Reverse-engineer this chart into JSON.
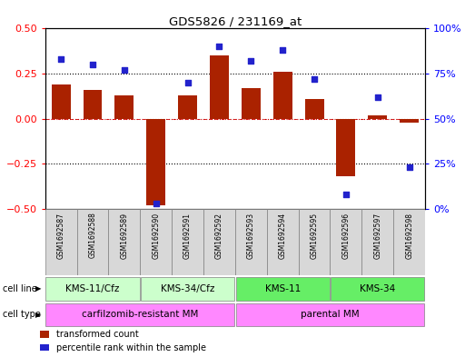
{
  "title": "GDS5826 / 231169_at",
  "samples": [
    "GSM1692587",
    "GSM1692588",
    "GSM1692589",
    "GSM1692590",
    "GSM1692591",
    "GSM1692592",
    "GSM1692593",
    "GSM1692594",
    "GSM1692595",
    "GSM1692596",
    "GSM1692597",
    "GSM1692598"
  ],
  "transformed_count": [
    0.19,
    0.16,
    0.13,
    -0.48,
    0.13,
    0.35,
    0.17,
    0.26,
    0.11,
    -0.32,
    0.02,
    -0.02
  ],
  "percentile_rank": [
    83,
    80,
    77,
    3,
    70,
    90,
    82,
    88,
    72,
    8,
    62,
    23
  ],
  "cell_lines": [
    {
      "label": "KMS-11/Cfz",
      "start": 0,
      "end": 3,
      "color": "#ccffcc"
    },
    {
      "label": "KMS-34/Cfz",
      "start": 3,
      "end": 6,
      "color": "#ccffcc"
    },
    {
      "label": "KMS-11",
      "start": 6,
      "end": 9,
      "color": "#66ee66"
    },
    {
      "label": "KMS-34",
      "start": 9,
      "end": 12,
      "color": "#66ee66"
    }
  ],
  "cell_types": [
    {
      "label": "carfilzomib-resistant MM",
      "start": 0,
      "end": 6,
      "color": "#ff88ff"
    },
    {
      "label": "parental MM",
      "start": 6,
      "end": 12,
      "color": "#ff88ff"
    }
  ],
  "bar_color": "#aa2200",
  "dot_color": "#2222cc",
  "ylim_left": [
    -0.5,
    0.5
  ],
  "ylim_right": [
    0,
    100
  ],
  "yticks_left": [
    -0.5,
    -0.25,
    0.0,
    0.25,
    0.5
  ],
  "yticks_right": [
    0,
    25,
    50,
    75,
    100
  ],
  "hline_color": "#cc0000",
  "dotted_color": "black",
  "sample_bg_color": "#d8d8d8",
  "legend_red": "transformed count",
  "legend_blue": "percentile rank within the sample",
  "left_label_color": "red",
  "right_label_color": "blue"
}
